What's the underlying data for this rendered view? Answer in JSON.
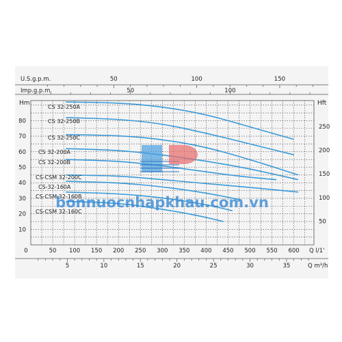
{
  "chart_data": {
    "type": "line",
    "top_axes": [
      {
        "label": "U.S.g.p.m.",
        "ticks": [
          "50",
          "100",
          "150"
        ],
        "values": [
          50,
          100,
          150
        ]
      },
      {
        "label": "Imp.g.p.m.",
        "ticks": [
          "50",
          "100"
        ],
        "values": [
          50,
          100
        ]
      }
    ],
    "bottom_axes": [
      {
        "label": "Q l/1'",
        "ticks": [
          "0",
          "50",
          "100",
          "150",
          "200",
          "250",
          "300",
          "350",
          "400",
          "450",
          "500",
          "550",
          "600"
        ],
        "values": [
          0,
          50,
          100,
          150,
          200,
          250,
          300,
          350,
          400,
          450,
          500,
          550,
          600
        ]
      },
      {
        "label": "Q m³/h",
        "ticks": [
          "5",
          "10",
          "15",
          "20",
          "25",
          "30",
          "35"
        ],
        "values": [
          5,
          10,
          15,
          20,
          25,
          30,
          35
        ]
      }
    ],
    "left_axis": {
      "label": "Hm",
      "ticks": [
        "10",
        "20",
        "30",
        "40",
        "50",
        "60",
        "70",
        "80"
      ],
      "values": [
        10,
        20,
        30,
        40,
        50,
        60,
        70,
        80
      ]
    },
    "right_axis": {
      "label": "Hft",
      "ticks": [
        "50",
        "100",
        "150",
        "200",
        "250"
      ],
      "values": [
        50,
        100,
        150,
        200,
        250
      ]
    },
    "xlim": [
      0,
      660
    ],
    "ylim": [
      0,
      93
    ],
    "grid": true,
    "watermark": "bonnuocnhapkhau.com.vn",
    "series": [
      {
        "name": "CS 32-250A",
        "points": [
          [
            80,
            92
          ],
          [
            200,
            91.5
          ],
          [
            300,
            89
          ],
          [
            400,
            84
          ],
          [
            500,
            76
          ],
          [
            600,
            68
          ]
        ]
      },
      {
        "name": "CS 32-250B",
        "points": [
          [
            80,
            82
          ],
          [
            200,
            81
          ],
          [
            300,
            78
          ],
          [
            400,
            72
          ],
          [
            500,
            65
          ],
          [
            600,
            58
          ]
        ]
      },
      {
        "name": "CS 32-250C",
        "points": [
          [
            80,
            71
          ],
          [
            200,
            70.5
          ],
          [
            300,
            68
          ],
          [
            400,
            63
          ],
          [
            500,
            55
          ],
          [
            610,
            45
          ]
        ]
      },
      {
        "name": "CS 32-200A",
        "points": [
          [
            80,
            62
          ],
          [
            200,
            61
          ],
          [
            300,
            58
          ],
          [
            400,
            54
          ],
          [
            500,
            49
          ],
          [
            610,
            42
          ]
        ]
      },
      {
        "name": "CS 32-200B",
        "points": [
          [
            80,
            55
          ],
          [
            200,
            54
          ],
          [
            300,
            51
          ],
          [
            400,
            47
          ],
          [
            480,
            44
          ],
          [
            560,
            42
          ]
        ]
      },
      {
        "name": "CS-CSM 32-200C",
        "points": [
          [
            80,
            45
          ],
          [
            200,
            44.5
          ],
          [
            300,
            42
          ],
          [
            400,
            39.5
          ],
          [
            500,
            37
          ],
          [
            610,
            34
          ]
        ]
      },
      {
        "name": "CS-32-160A",
        "points": [
          [
            80,
            41
          ],
          [
            200,
            40
          ],
          [
            300,
            37.5
          ],
          [
            400,
            33.5
          ],
          [
            480,
            29
          ]
        ]
      },
      {
        "name": "CS-CSM 32-160B",
        "points": [
          [
            80,
            34
          ],
          [
            200,
            33
          ],
          [
            300,
            30.5
          ],
          [
            400,
            26
          ],
          [
            460,
            22
          ]
        ]
      },
      {
        "name": "CS-CSM 32-160C",
        "points": [
          [
            80,
            28
          ],
          [
            200,
            27
          ],
          [
            300,
            23
          ],
          [
            380,
            19
          ],
          [
            440,
            15
          ]
        ]
      }
    ]
  }
}
